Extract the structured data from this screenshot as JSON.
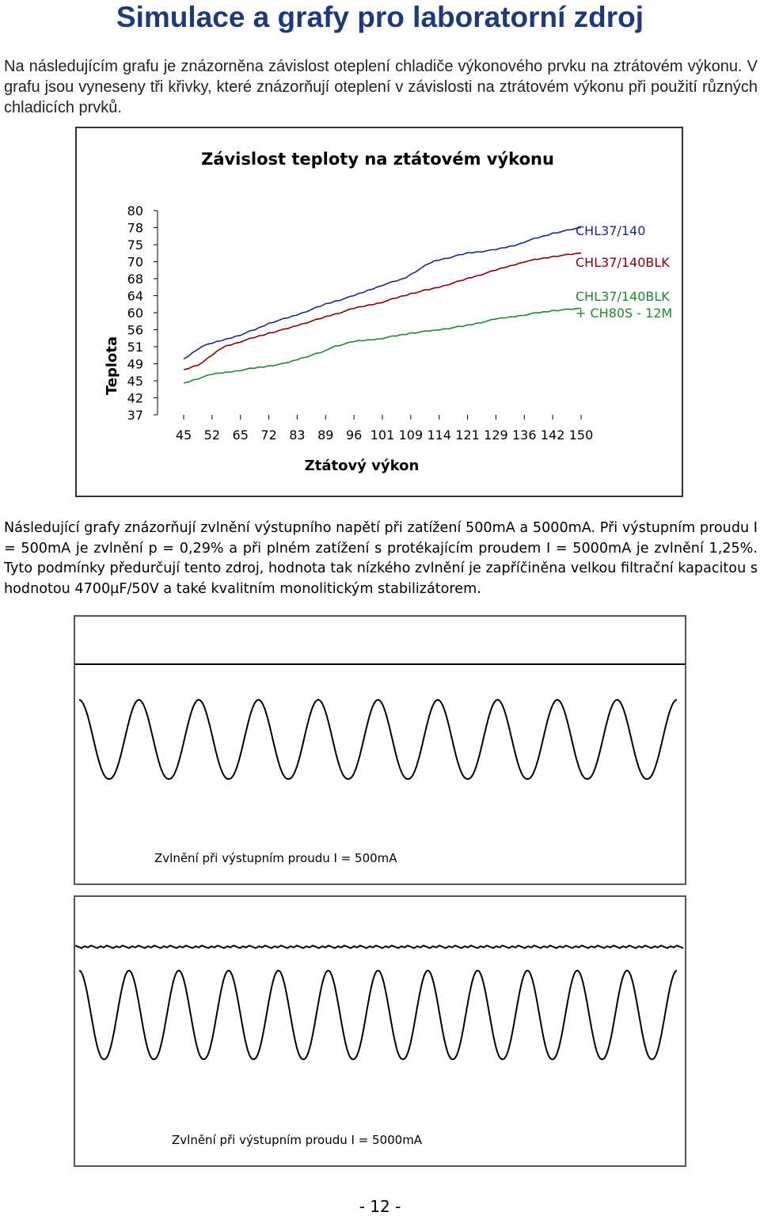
{
  "title": "Simulace a grafy pro laboratorní zdroj",
  "intro": "Na následujícím grafu je znázorněna závislost oteplení chladiče výkonového prvku na ztrátovém výkonu. V grafu jsou vyneseny tři křivky, které znázorňují oteplení v závislosti na ztrátovém výkonu při použití různých chladicích prvků.",
  "para2": "Následující grafy znázorňují zvlnění výstupního napětí při zatížení 500mA a 5000mA. Při výstupním proudu I = 500mA je zvlnění p = 0,29% a při plném zatížení s protékajícím proudem I = 5000mA je zvlnění 1,25%. Tyto podmínky předurčují tento zdroj, hodnota tak nízkého zvlnění je zapříčiněna velkou filtrační kapacitou s hodnotou 4700µF/50V a také kvalitním monolitickým stabilizátorem.",
  "page_number": "- 12 -",
  "colors": {
    "title": "#1f3a7a",
    "series1": "#1a2a8c",
    "series2": "#8b0000",
    "series3": "#1f8a2a"
  },
  "chart_data": [
    {
      "type": "line",
      "title": "Závislost teploty na ztátovém výkonu",
      "xlabel": "Ztátový výkon",
      "ylabel": "Teplota",
      "x": [
        "45",
        "52",
        "65",
        "72",
        "83",
        "89",
        "96",
        "101",
        "109",
        "114",
        "121",
        "129",
        "136",
        "142",
        "150"
      ],
      "y_ticks": [
        "80",
        "78",
        "75",
        "70",
        "68",
        "64",
        "60",
        "56",
        "51",
        "49",
        "45",
        "42",
        "37"
      ],
      "series": [
        {
          "name": "CHL37/140",
          "values": [
            49.5,
            52,
            54.5,
            57.5,
            59.5,
            62,
            64,
            66.5,
            68.5,
            70.5,
            72.5,
            73.5,
            75.5,
            77,
            78
          ]
        },
        {
          "name": "CHL37/140BLK",
          "values": [
            47.5,
            50,
            52.5,
            55,
            57,
            59,
            61,
            62.5,
            64.5,
            66,
            68,
            69,
            70,
            71.5,
            72.5
          ]
        },
        {
          "name": "CHL37/140BLK\n+ CH80S - 12M",
          "values": [
            44.5,
            46.5,
            47.5,
            48.5,
            49.5,
            50.5,
            52.5,
            53.5,
            55,
            56,
            57,
            58.5,
            59.5,
            60.5,
            61
          ]
        }
      ]
    },
    {
      "type": "line",
      "title": "Zvlnění při výstupním proudu I = 500mA",
      "cycles": 10,
      "relative_amplitude": 0.29
    },
    {
      "type": "line",
      "title": "Zvlnění při výstupním proudu I = 5000mA",
      "cycles": 12,
      "relative_amplitude": 1.25
    }
  ]
}
